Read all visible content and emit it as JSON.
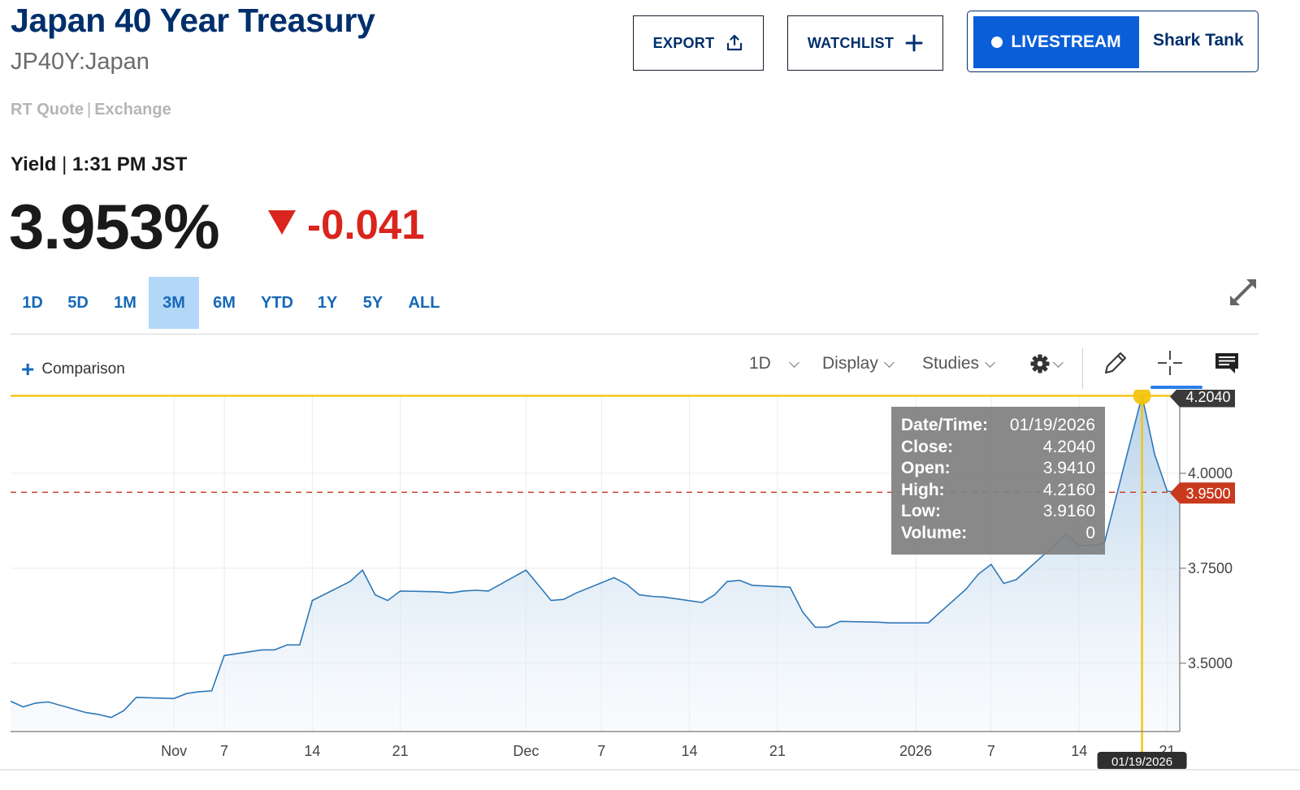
{
  "header": {
    "title": "Japan 40 Year Treasury",
    "symbol": "JP40Y:Japan",
    "quote_type": "RT Quote",
    "quote_sep": "|",
    "exchange": "Exchange"
  },
  "actions": {
    "export_label": "EXPORT",
    "watchlist_label": "WATCHLIST",
    "livestream_label": "LIVESTREAM",
    "show_label": "Shark Tank"
  },
  "quote": {
    "label": "Yield",
    "sep": "|",
    "time": "1:31 PM JST",
    "price": "3.953%",
    "change": "-0.041"
  },
  "ranges": [
    {
      "label": "1D",
      "active": false
    },
    {
      "label": "5D",
      "active": false
    },
    {
      "label": "1M",
      "active": false
    },
    {
      "label": "3M",
      "active": true
    },
    {
      "label": "6M",
      "active": false
    },
    {
      "label": "YTD",
      "active": false
    },
    {
      "label": "1Y",
      "active": false
    },
    {
      "label": "5Y",
      "active": false
    },
    {
      "label": "ALL",
      "active": false
    }
  ],
  "toolbar": {
    "comparison_label": "Comparison",
    "interval_label": "1D",
    "display_label": "Display",
    "studies_label": "Studies"
  },
  "tooltip": {
    "rows": [
      {
        "key": "Date/Time:",
        "value": "01/19/2026"
      },
      {
        "key": "Close:",
        "value": "4.2040"
      },
      {
        "key": "Open:",
        "value": "3.9410"
      },
      {
        "key": "High:",
        "value": "4.2160"
      },
      {
        "key": "Low:",
        "value": "3.9160"
      },
      {
        "key": "Volume:",
        "value": "0"
      }
    ]
  },
  "colors": {
    "line": "#2f78b7",
    "crosshair": "#f2c40f",
    "current_price": "#c8391d",
    "down": "#d9251d",
    "brand": "#002f6c",
    "accent": "#0a5ed8"
  },
  "chart_data": {
    "type": "area",
    "x": [
      "10/21/2025",
      "10/22/2025",
      "10/23/2025",
      "10/24/2025",
      "10/27/2025",
      "10/28/2025",
      "10/29/2025",
      "10/30/2025",
      "10/31/2025",
      "11/03/2025",
      "11/04/2025",
      "11/05/2025",
      "11/06/2025",
      "11/07/2025",
      "11/10/2025",
      "11/11/2025",
      "11/12/2025",
      "11/13/2025",
      "11/14/2025",
      "11/17/2025",
      "11/18/2025",
      "11/19/2025",
      "11/20/2025",
      "11/21/2025",
      "11/24/2025",
      "11/25/2025",
      "11/26/2025",
      "11/27/2025",
      "11/28/2025",
      "12/01/2025",
      "12/02/2025",
      "12/03/2025",
      "12/04/2025",
      "12/05/2025",
      "12/08/2025",
      "12/09/2025",
      "12/10/2025",
      "12/11/2025",
      "12/12/2025",
      "12/15/2025",
      "12/16/2025",
      "12/17/2025",
      "12/18/2025",
      "12/19/2025",
      "12/22/2025",
      "12/23/2025",
      "12/24/2025",
      "12/25/2025",
      "12/26/2025",
      "12/29/2025",
      "12/30/2025",
      "12/31/2025",
      "01/01/2026",
      "01/02/2026",
      "01/05/2026",
      "01/06/2026",
      "01/07/2026",
      "01/08/2026",
      "01/09/2026",
      "01/12/2026",
      "01/13/2026",
      "01/14/2026",
      "01/15/2026",
      "01/16/2026",
      "01/19/2026",
      "01/20/2026",
      "01/21/2026",
      "01/22/2026"
    ],
    "values": [
      3.4,
      3.385,
      3.395,
      3.398,
      3.37,
      3.365,
      3.357,
      3.375,
      3.41,
      3.407,
      3.42,
      3.425,
      3.427,
      3.52,
      3.535,
      3.535,
      3.548,
      3.548,
      3.665,
      3.715,
      3.745,
      3.68,
      3.665,
      3.69,
      3.688,
      3.685,
      3.69,
      3.692,
      3.69,
      3.745,
      3.705,
      3.665,
      3.668,
      3.685,
      3.725,
      3.708,
      3.68,
      3.676,
      3.674,
      3.66,
      3.68,
      3.715,
      3.718,
      3.705,
      3.7,
      3.635,
      3.595,
      3.595,
      3.61,
      3.608,
      3.606,
      3.606,
      3.606,
      3.606,
      3.695,
      3.735,
      3.76,
      3.71,
      3.72,
      3.81,
      3.84,
      3.81,
      3.81,
      3.816,
      4.204,
      4.05,
      3.953,
      3.95
    ],
    "ylim": [
      3.32,
      4.22
    ],
    "y_ticks": [
      3.5,
      3.75,
      4.0
    ],
    "y_tick_labels": [
      "3.5000",
      "3.7500",
      "4.0000"
    ],
    "x_tick_dates": [
      "11/03/2025",
      "11/07/2025",
      "11/14/2025",
      "11/21/2025",
      "12/01/2025",
      "12/07/2025",
      "12/14/2025",
      "12/21/2025",
      "01/01/2026",
      "01/07/2026",
      "01/14/2026",
      "01/21/2026"
    ],
    "x_tick_labels": [
      "Nov",
      "7",
      "14",
      "21",
      "Dec",
      "7",
      "14",
      "21",
      "2026",
      "7",
      "14",
      "21"
    ],
    "x_range": [
      "10/21/2025",
      "01/22/2026"
    ],
    "crosshair": {
      "date": "01/19/2026",
      "value": 4.204,
      "label": "4.2040",
      "date_label": "01/19/2026"
    },
    "current": {
      "value": 3.95,
      "label": "3.9500"
    },
    "grid": true
  }
}
